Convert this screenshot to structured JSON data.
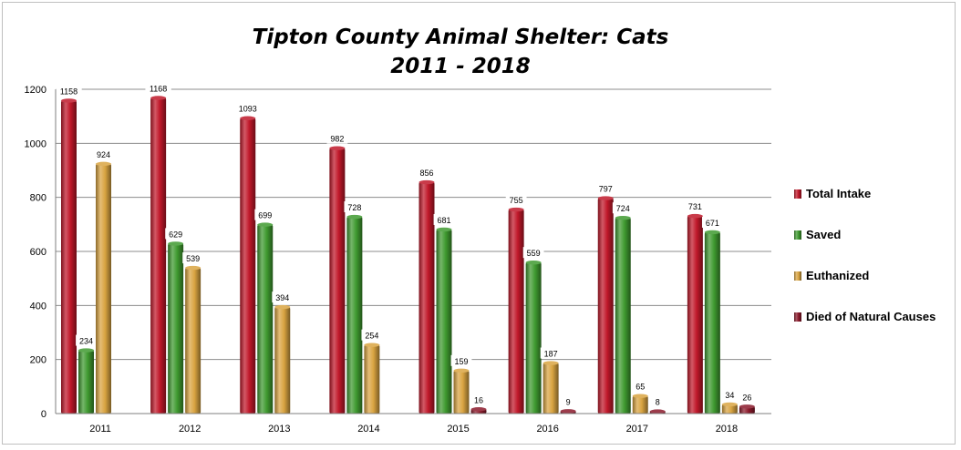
{
  "chart_data": {
    "type": "bar",
    "title_line1": "Tipton County Animal Shelter: Cats",
    "title_line2": "2011 - 2018",
    "xlabel": "",
    "ylabel": "",
    "ylim": [
      0,
      1200
    ],
    "yticks": [
      "0",
      "200",
      "400",
      "600",
      "800",
      "1000",
      "1200"
    ],
    "grid": true,
    "legend_position": "right",
    "categories": [
      "2011",
      "2012",
      "2013",
      "2014",
      "2015",
      "2016",
      "2017",
      "2018"
    ],
    "series": [
      {
        "name": "Total Intake",
        "color": "#c0182a",
        "values": [
          1158,
          1168,
          1093,
          982,
          856,
          755,
          797,
          731
        ],
        "labels": [
          "1158",
          "1168",
          "1093",
          "982",
          "856",
          "755",
          "797",
          "731"
        ]
      },
      {
        "name": "Saved",
        "color": "#3f9a30",
        "values": [
          234,
          629,
          699,
          728,
          681,
          559,
          724,
          671
        ],
        "labels": [
          "234",
          "629",
          "699",
          "728",
          "681",
          "559",
          "724",
          "671"
        ]
      },
      {
        "name": "Euthanized",
        "color": "#d9a441",
        "values": [
          924,
          539,
          394,
          254,
          159,
          187,
          65,
          34
        ],
        "labels": [
          "924",
          "539",
          "394",
          "254",
          "159",
          "187",
          "65",
          "34"
        ]
      },
      {
        "name": "Died of Natural Causes",
        "color": "#8b1a2b",
        "values": [
          0,
          0,
          0,
          0,
          16,
          9,
          8,
          26
        ],
        "labels": [
          "",
          "",
          "",
          "",
          "16",
          "9",
          "8",
          "26"
        ]
      }
    ]
  }
}
